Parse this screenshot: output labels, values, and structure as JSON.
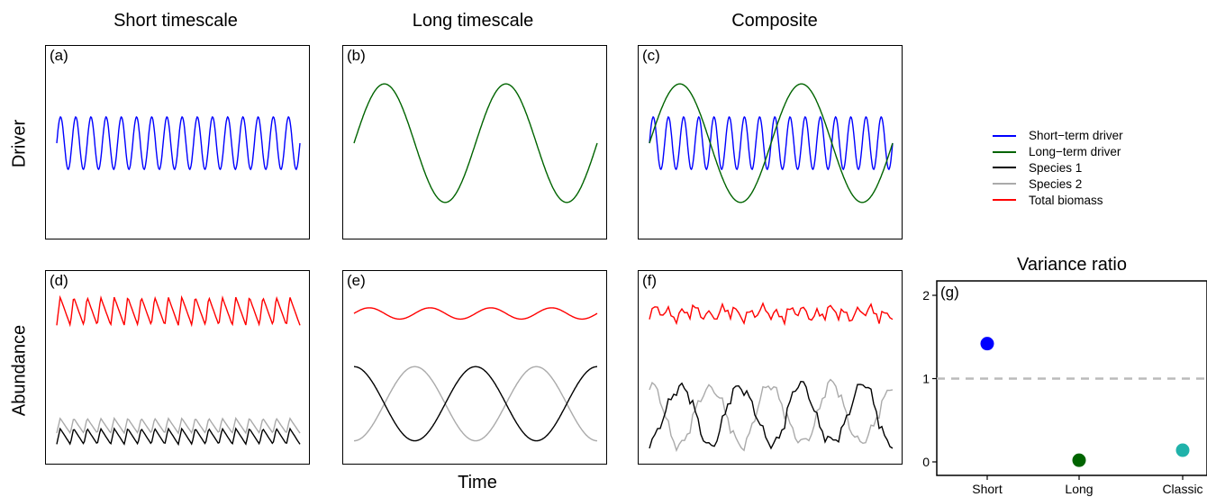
{
  "column_titles": [
    "Short timescale",
    "Long timescale",
    "Composite"
  ],
  "row_labels": [
    "Driver",
    "Abundance"
  ],
  "x_label": "Time",
  "legend": [
    {
      "label": "Short−term driver",
      "color": "#0000ff"
    },
    {
      "label": "Long−term driver",
      "color": "#006400"
    },
    {
      "label": "Species 1",
      "color": "#000000"
    },
    {
      "label": "Species 2",
      "color": "#aaaaaa"
    },
    {
      "label": "Total biomass",
      "color": "#ff0000"
    }
  ],
  "chart_data": [
    {
      "panel": "(a)",
      "type": "line",
      "series": [
        {
          "name": "Short−term driver",
          "color": "#0000ff",
          "kind": "sine",
          "cycles": 16,
          "mean": 0.5,
          "amplitude": 0.31
        }
      ]
    },
    {
      "panel": "(b)",
      "type": "line",
      "series": [
        {
          "name": "Long−term driver",
          "color": "#006400",
          "kind": "sine",
          "cycles": 2,
          "mean": 0.5,
          "amplitude": 0.7
        }
      ]
    },
    {
      "panel": "(c)",
      "type": "line",
      "series": [
        {
          "name": "Short−term driver",
          "color": "#0000ff",
          "kind": "sine",
          "cycles": 16,
          "mean": 0.5,
          "amplitude": 0.31
        },
        {
          "name": "Long−term driver",
          "color": "#006400",
          "kind": "sine",
          "cycles": 2,
          "mean": 0.5,
          "amplitude": 0.7
        }
      ]
    },
    {
      "panel": "(d)",
      "type": "line",
      "series": [
        {
          "name": "Total biomass",
          "color": "#ff0000",
          "kind": "saw",
          "cycles": 18,
          "low": 1.62,
          "high": 1.98
        },
        {
          "name": "Species 2",
          "color": "#aaaaaa",
          "kind": "saw",
          "cycles": 18,
          "low": 0.25,
          "high": 0.44
        },
        {
          "name": "Species 1",
          "color": "#000000",
          "kind": "saw",
          "cycles": 18,
          "low": 0.11,
          "high": 0.31
        }
      ]
    },
    {
      "panel": "(e)",
      "type": "line",
      "series": [
        {
          "name": "Total biomass",
          "color": "#ff0000",
          "kind": "sine",
          "cycles": 4,
          "mean": 1.73,
          "amplitude": 0.07
        },
        {
          "name": "Species 2",
          "color": "#aaaaaa",
          "kind": "sine2",
          "cycles": 2,
          "mean": 0.61,
          "amplitude": 0.46
        },
        {
          "name": "Species 1",
          "color": "#000000",
          "kind": "sine2inv",
          "cycles": 2,
          "mean": 0.61,
          "amplitude": 0.46
        }
      ]
    },
    {
      "panel": "(f)",
      "type": "line",
      "series": [
        {
          "name": "Total biomass",
          "color": "#ff0000",
          "kind": "noisy",
          "cycles": 18,
          "long_amp": 0.0,
          "mean": 1.82,
          "amplitude": 0.17
        },
        {
          "name": "Species 2",
          "color": "#aaaaaa",
          "kind": "noisy",
          "cycles": 18,
          "long_amp": 0.38,
          "mean": 0.5,
          "amplitude": 0.12,
          "phase": 0
        },
        {
          "name": "Species 1",
          "color": "#000000",
          "kind": "noisy",
          "cycles": 18,
          "long_amp": -0.38,
          "mean": 0.5,
          "amplitude": 0.12,
          "phase": 0
        }
      ]
    },
    {
      "panel": "(g)",
      "type": "scatter",
      "title": "Variance ratio",
      "categories": [
        "Short\ntimescale",
        "Long\ntimescale",
        "Classic"
      ],
      "values": [
        1.42,
        0.02,
        0.14
      ],
      "colors": [
        "#0000ff",
        "#006400",
        "#20b2aa"
      ],
      "reference_line": 1,
      "yticks": [
        0,
        1,
        2
      ],
      "ylim": [
        0,
        2
      ]
    }
  ],
  "panel_labels": [
    "(a)",
    "(b)",
    "(c)",
    "(d)",
    "(e)",
    "(f)",
    "(g)"
  ]
}
